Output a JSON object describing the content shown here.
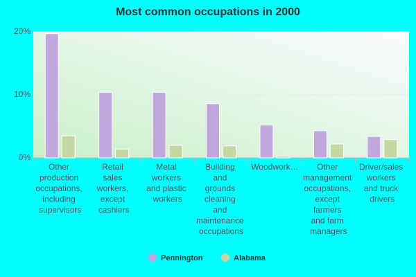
{
  "chart_data": {
    "type": "bar",
    "title": "Most common occupations in 2000",
    "categories": [
      "Other\nproduction\noccupations,\nincluding\nsupervisors",
      "Retail\nsales\nworkers,\nexcept\ncashiers",
      "Metal\nworkers\nand plastic\nworkers",
      "Building\nand\ngrounds\ncleaning\nand\nmaintenance\noccupations",
      "Woodwork…",
      "Other\nmanagement\noccupations,\nexcept\nfarmers\nand farm\nmanagers",
      "Driver/sales\nworkers\nand truck\ndrivers"
    ],
    "series": [
      {
        "name": "Pennington",
        "color": "#c0a8dc",
        "values": [
          19.7,
          10.4,
          10.4,
          8.6,
          5.2,
          4.3,
          3.4
        ]
      },
      {
        "name": "Alabama",
        "color": "#c5d8a4",
        "values": [
          3.5,
          1.4,
          2.0,
          1.9,
          0.3,
          2.2,
          2.9
        ]
      }
    ],
    "ylim": [
      0,
      20
    ],
    "yticks": [
      {
        "value": 0,
        "label": "0%"
      },
      {
        "value": 10,
        "label": "10%"
      },
      {
        "value": 20,
        "label": "20%"
      }
    ],
    "grid": true
  }
}
